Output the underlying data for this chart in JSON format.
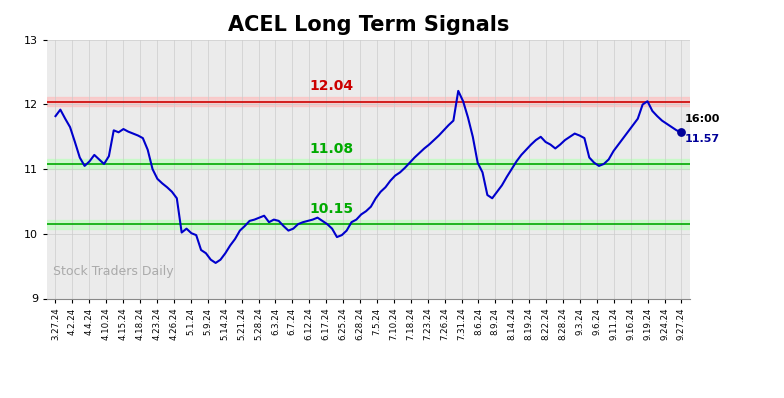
{
  "title": "ACEL Long Term Signals",
  "title_fontsize": 15,
  "title_fontweight": "bold",
  "background_color": "#ffffff",
  "plot_bg_color": "#ebebeb",
  "line_color": "#0000cc",
  "line_width": 1.5,
  "ylim": [
    9,
    13
  ],
  "yticks": [
    9,
    10,
    11,
    12,
    13
  ],
  "red_line": 12.04,
  "green_line_upper": 11.08,
  "green_line_lower": 10.15,
  "red_line_color": "#cc0000",
  "red_bg_color": "#ffbbbb",
  "green_line_color": "#00aa00",
  "green_bg_color": "#bbffbb",
  "watermark": "Stock Traders Daily",
  "watermark_color": "#aaaaaa",
  "end_label_time": "16:00",
  "end_label_value": "11.57",
  "end_dot_color": "#000099",
  "annotation_12_04": "12.04",
  "annotation_11_08": "11.08",
  "annotation_10_15": "10.15",
  "x_labels": [
    "3.27.24",
    "4.2.24",
    "4.4.24",
    "4.10.24",
    "4.15.24",
    "4.18.24",
    "4.23.24",
    "4.26.24",
    "5.1.24",
    "5.9.24",
    "5.14.24",
    "5.21.24",
    "5.28.24",
    "6.3.24",
    "6.7.24",
    "6.12.24",
    "6.17.24",
    "6.25.24",
    "6.28.24",
    "7.5.24",
    "7.10.24",
    "7.18.24",
    "7.23.24",
    "7.26.24",
    "7.31.24",
    "8.6.24",
    "8.9.24",
    "8.14.24",
    "8.19.24",
    "8.22.24",
    "8.28.24",
    "9.3.24",
    "9.6.24",
    "9.11.24",
    "9.16.24",
    "9.19.24",
    "9.24.24",
    "9.27.24"
  ],
  "prices": [
    11.82,
    11.92,
    11.78,
    11.65,
    11.42,
    11.18,
    11.05,
    11.12,
    11.22,
    11.15,
    11.08,
    11.2,
    11.6,
    11.57,
    11.62,
    11.58,
    11.55,
    11.52,
    11.48,
    11.3,
    11.0,
    10.85,
    10.78,
    10.72,
    10.65,
    10.55,
    10.02,
    10.08,
    10.01,
    9.98,
    9.75,
    9.7,
    9.6,
    9.55,
    9.6,
    9.7,
    9.82,
    9.92,
    10.05,
    10.12,
    10.2,
    10.22,
    10.25,
    10.28,
    10.18,
    10.22,
    10.2,
    10.12,
    10.05,
    10.08,
    10.15,
    10.18,
    10.2,
    10.22,
    10.25,
    10.2,
    10.15,
    10.08,
    9.95,
    9.98,
    10.05,
    10.18,
    10.22,
    10.3,
    10.35,
    10.42,
    10.55,
    10.65,
    10.72,
    10.82,
    10.9,
    10.95,
    11.02,
    11.1,
    11.18,
    11.25,
    11.32,
    11.38,
    11.45,
    11.52,
    11.6,
    11.68,
    11.75,
    12.21,
    12.05,
    11.8,
    11.5,
    11.1,
    10.95,
    10.6,
    10.55,
    10.65,
    10.75,
    10.88,
    11.0,
    11.12,
    11.22,
    11.3,
    11.38,
    11.45,
    11.5,
    11.42,
    11.38,
    11.32,
    11.38,
    11.45,
    11.5,
    11.55,
    11.52,
    11.48,
    11.18,
    11.1,
    11.05,
    11.08,
    11.15,
    11.28,
    11.38,
    11.48,
    11.58,
    11.68,
    11.78,
    12.0,
    12.05,
    11.9,
    11.82,
    11.75,
    11.7,
    11.65,
    11.6,
    11.57
  ]
}
